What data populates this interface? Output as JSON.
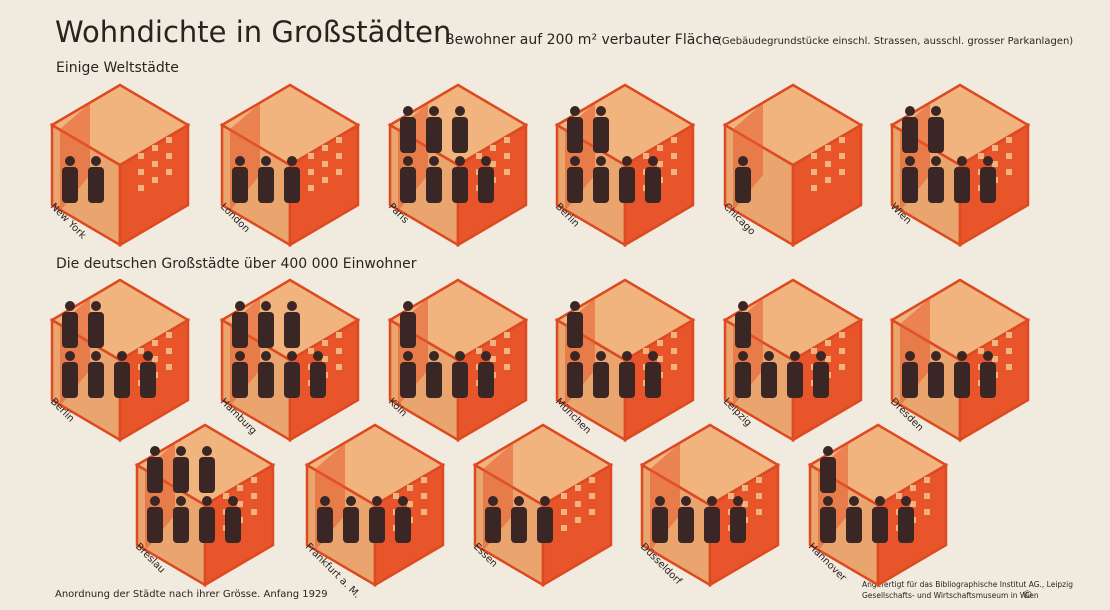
{
  "header": {
    "title": "Wohndichte in Großstädten",
    "subtitle": "Bewohner auf 200 m² verbauter Fläche",
    "subtitle_note": "(Gebäudegrundstücke einschl. Strassen, ausschl. grosser Parkanlagen)"
  },
  "chart_data": [
    {
      "type": "pictograph",
      "title": "Einige Weltstädte",
      "categories": [
        "New York",
        "London",
        "Paris",
        "Berlin",
        "Chicago",
        "Wien"
      ],
      "values": [
        2,
        3,
        7,
        6,
        1,
        6
      ]
    },
    {
      "type": "pictograph",
      "title": "Die deutschen Großstädte über 400 000 Einwohner",
      "categories": [
        "Berlin",
        "Hamburg",
        "Köln",
        "München",
        "Leipzig",
        "Dresden",
        "Breslau",
        "Frankfurt a. M.",
        "Essen",
        "Düsseldorf",
        "Hannover"
      ],
      "values": [
        6,
        7,
        5,
        5,
        5,
        4,
        7,
        4,
        3,
        4,
        5
      ]
    }
  ],
  "footer": {
    "note": "Anordnung der Städte nach ihrer Grösse. Anfang 1929",
    "credit_1": "Angefertigt für das Bibliographische Institut AG., Leipzig",
    "credit_2": "Gesellschafts- und Wirtschaftsmuseum in Wien",
    "copyright": "©"
  }
}
